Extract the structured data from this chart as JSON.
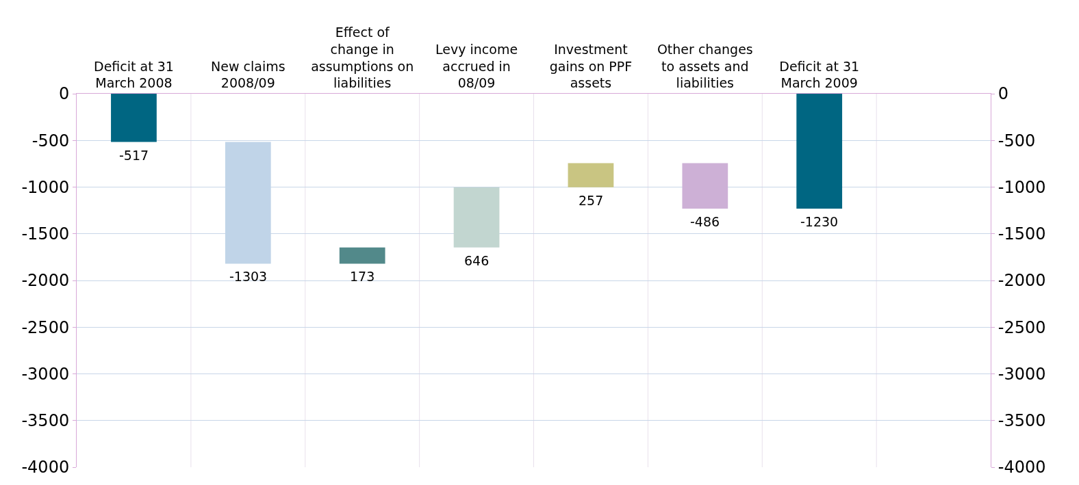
{
  "chart_data": {
    "type": "bar",
    "categories": [
      "Deficit at 31 March 2008",
      "New claims 2008/09",
      "Effect of change in assumptions on liabilities",
      "Levy income accrued in 08/09",
      "Investment gains on PPF assets",
      "Other changes to assets and liabilities",
      "Deficit at 31 March 2009",
      null
    ],
    "values": [
      -517,
      -1303,
      173,
      646,
      257,
      -486,
      -1230,
      null
    ],
    "base": [
      0,
      -517,
      -1820,
      -1647,
      -1001,
      -744,
      0,
      null
    ],
    "colors": [
      "#006682",
      "#c0d4e8",
      "#52898a",
      "#c2d6d0",
      "#c9c582",
      "#cdb0d6",
      "#006682",
      null
    ],
    "data_labels": true,
    "ylim": [
      -4000,
      0
    ],
    "yticks": [
      -4000,
      -3500,
      -3000,
      -2500,
      -2000,
      -1500,
      -1000,
      -500,
      0
    ],
    "y2lim": [
      -4000,
      0
    ],
    "y2ticks": [
      -4000,
      -3500,
      -3000,
      -2500,
      -2000,
      -1500,
      -1000,
      -500,
      0
    ],
    "grid": true
  }
}
